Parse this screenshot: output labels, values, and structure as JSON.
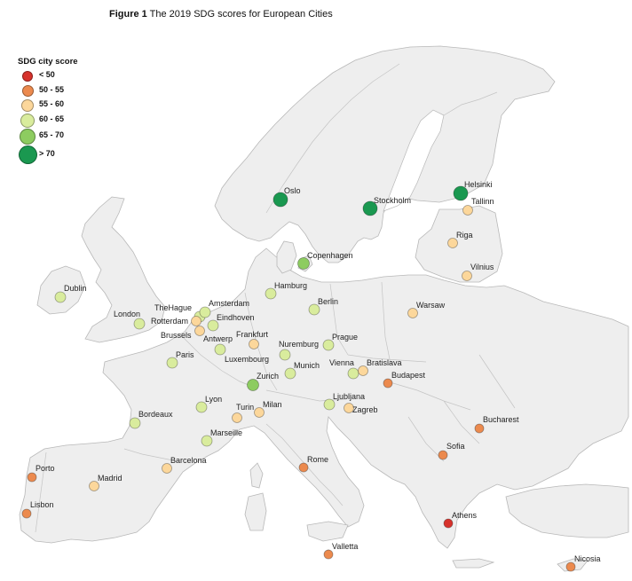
{
  "title": {
    "number": "Figure 1",
    "text": "The 2019 SDG scores for European Cities"
  },
  "legend": {
    "title": "SDG city score",
    "items": [
      {
        "label": "< 50",
        "category": "lt50"
      },
      {
        "label": "50 - 55",
        "category": "50-55"
      },
      {
        "label": "55 - 60",
        "category": "55-60"
      },
      {
        "label": "60 - 65",
        "category": "60-65"
      },
      {
        "label": "65 - 70",
        "category": "65-70"
      },
      {
        "label": "> 70",
        "category": "gt70"
      }
    ]
  },
  "colors": {
    "lt50": "#d7322c",
    "50-55": "#ec8a4e",
    "55-60": "#fcd79b",
    "60-65": "#d9ec9d",
    "65-70": "#8dcc60",
    "gt70": "#1a9850",
    "land": "#eeeeee",
    "border": "#b8b8b8"
  },
  "cities": [
    {
      "name": "Oslo",
      "category": "gt70"
    },
    {
      "name": "Stockholm",
      "category": "gt70"
    },
    {
      "name": "Helsinki",
      "category": "gt70"
    },
    {
      "name": "Tallinn",
      "category": "55-60"
    },
    {
      "name": "Riga",
      "category": "55-60"
    },
    {
      "name": "Vilnius",
      "category": "55-60"
    },
    {
      "name": "Copenhagen",
      "category": "65-70"
    },
    {
      "name": "Dublin",
      "category": "60-65"
    },
    {
      "name": "Hamburg",
      "category": "60-65"
    },
    {
      "name": "Berlin",
      "category": "60-65"
    },
    {
      "name": "Warsaw",
      "category": "55-60"
    },
    {
      "name": "London",
      "category": "60-65"
    },
    {
      "name": "TheHague",
      "category": "60-65"
    },
    {
      "name": "Amsterdam",
      "category": "60-65"
    },
    {
      "name": "Rotterdam",
      "category": "55-60"
    },
    {
      "name": "Eindhoven",
      "category": "60-65"
    },
    {
      "name": "Brussels",
      "category": "55-60"
    },
    {
      "name": "Antwerp",
      "category": "60-65"
    },
    {
      "name": "Frankfurt",
      "category": "55-60"
    },
    {
      "name": "Prague",
      "category": "55-60"
    },
    {
      "name": "Paris",
      "category": "60-65"
    },
    {
      "name": "Luxembourg",
      "category": "60-65"
    },
    {
      "name": "Nuremburg",
      "category": "60-65"
    },
    {
      "name": "Munich",
      "category": "60-65"
    },
    {
      "name": "Vienna",
      "category": "60-65"
    },
    {
      "name": "Bratislava",
      "category": "55-60"
    },
    {
      "name": "Zurich",
      "category": "65-70"
    },
    {
      "name": "Budapest",
      "category": "50-55"
    },
    {
      "name": "Lyon",
      "category": "60-65"
    },
    {
      "name": "Ljubljana",
      "category": "60-65"
    },
    {
      "name": "Zagreb",
      "category": "55-60"
    },
    {
      "name": "Turin",
      "category": "55-60"
    },
    {
      "name": "Milan",
      "category": "55-60"
    },
    {
      "name": "Bordeaux",
      "category": "60-65"
    },
    {
      "name": "Marseille",
      "category": "60-65"
    },
    {
      "name": "Bucharest",
      "category": "50-55"
    },
    {
      "name": "Sofia",
      "category": "50-55"
    },
    {
      "name": "Porto",
      "category": "50-55"
    },
    {
      "name": "Barcelona",
      "category": "55-60"
    },
    {
      "name": "Rome",
      "category": "50-55"
    },
    {
      "name": "Madrid",
      "category": "55-60"
    },
    {
      "name": "Lisbon",
      "category": "50-55"
    },
    {
      "name": "Athens",
      "category": "lt50"
    },
    {
      "name": "Valletta",
      "category": "50-55"
    },
    {
      "name": "Nicosia",
      "category": "50-55"
    }
  ]
}
